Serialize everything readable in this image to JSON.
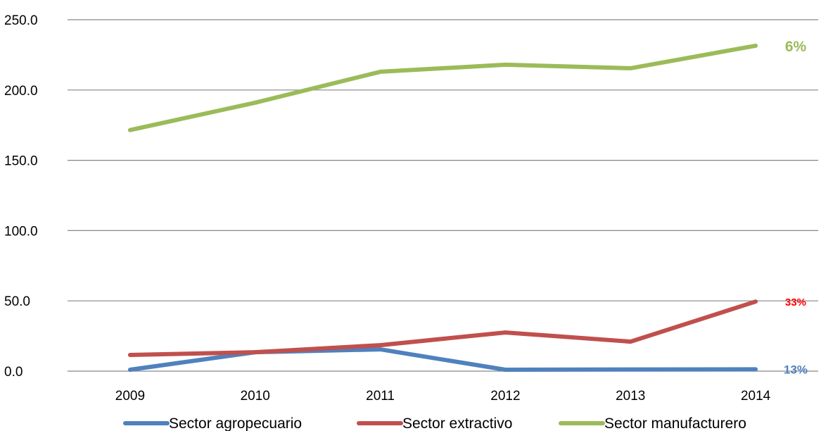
{
  "chart_data": {
    "type": "line",
    "categories": [
      "2009",
      "2010",
      "2011",
      "2012",
      "2013",
      "2014"
    ],
    "ylim": [
      0,
      250
    ],
    "yticks": [
      "0.0",
      "50.0",
      "100.0",
      "150.0",
      "200.0",
      "250.0"
    ],
    "grid": "horizontal",
    "legend_position": "bottom",
    "series": [
      {
        "name": "Sector agropecuario",
        "color": "#4F81BD",
        "values": [
          1,
          13.5,
          15.5,
          1,
          1.2,
          1.3
        ],
        "end_label": "13%"
      },
      {
        "name": "Sector extractivo",
        "color": "#C0504D",
        "values": [
          11.5,
          13.5,
          18.5,
          27.5,
          21,
          49.5
        ],
        "end_label": "33%",
        "end_label_color": "#FF0000"
      },
      {
        "name": "Sector manufacturero",
        "color": "#9BBB59",
        "values": [
          171.5,
          191,
          213,
          218,
          215.5,
          231.5
        ],
        "end_label": "6%"
      }
    ]
  }
}
